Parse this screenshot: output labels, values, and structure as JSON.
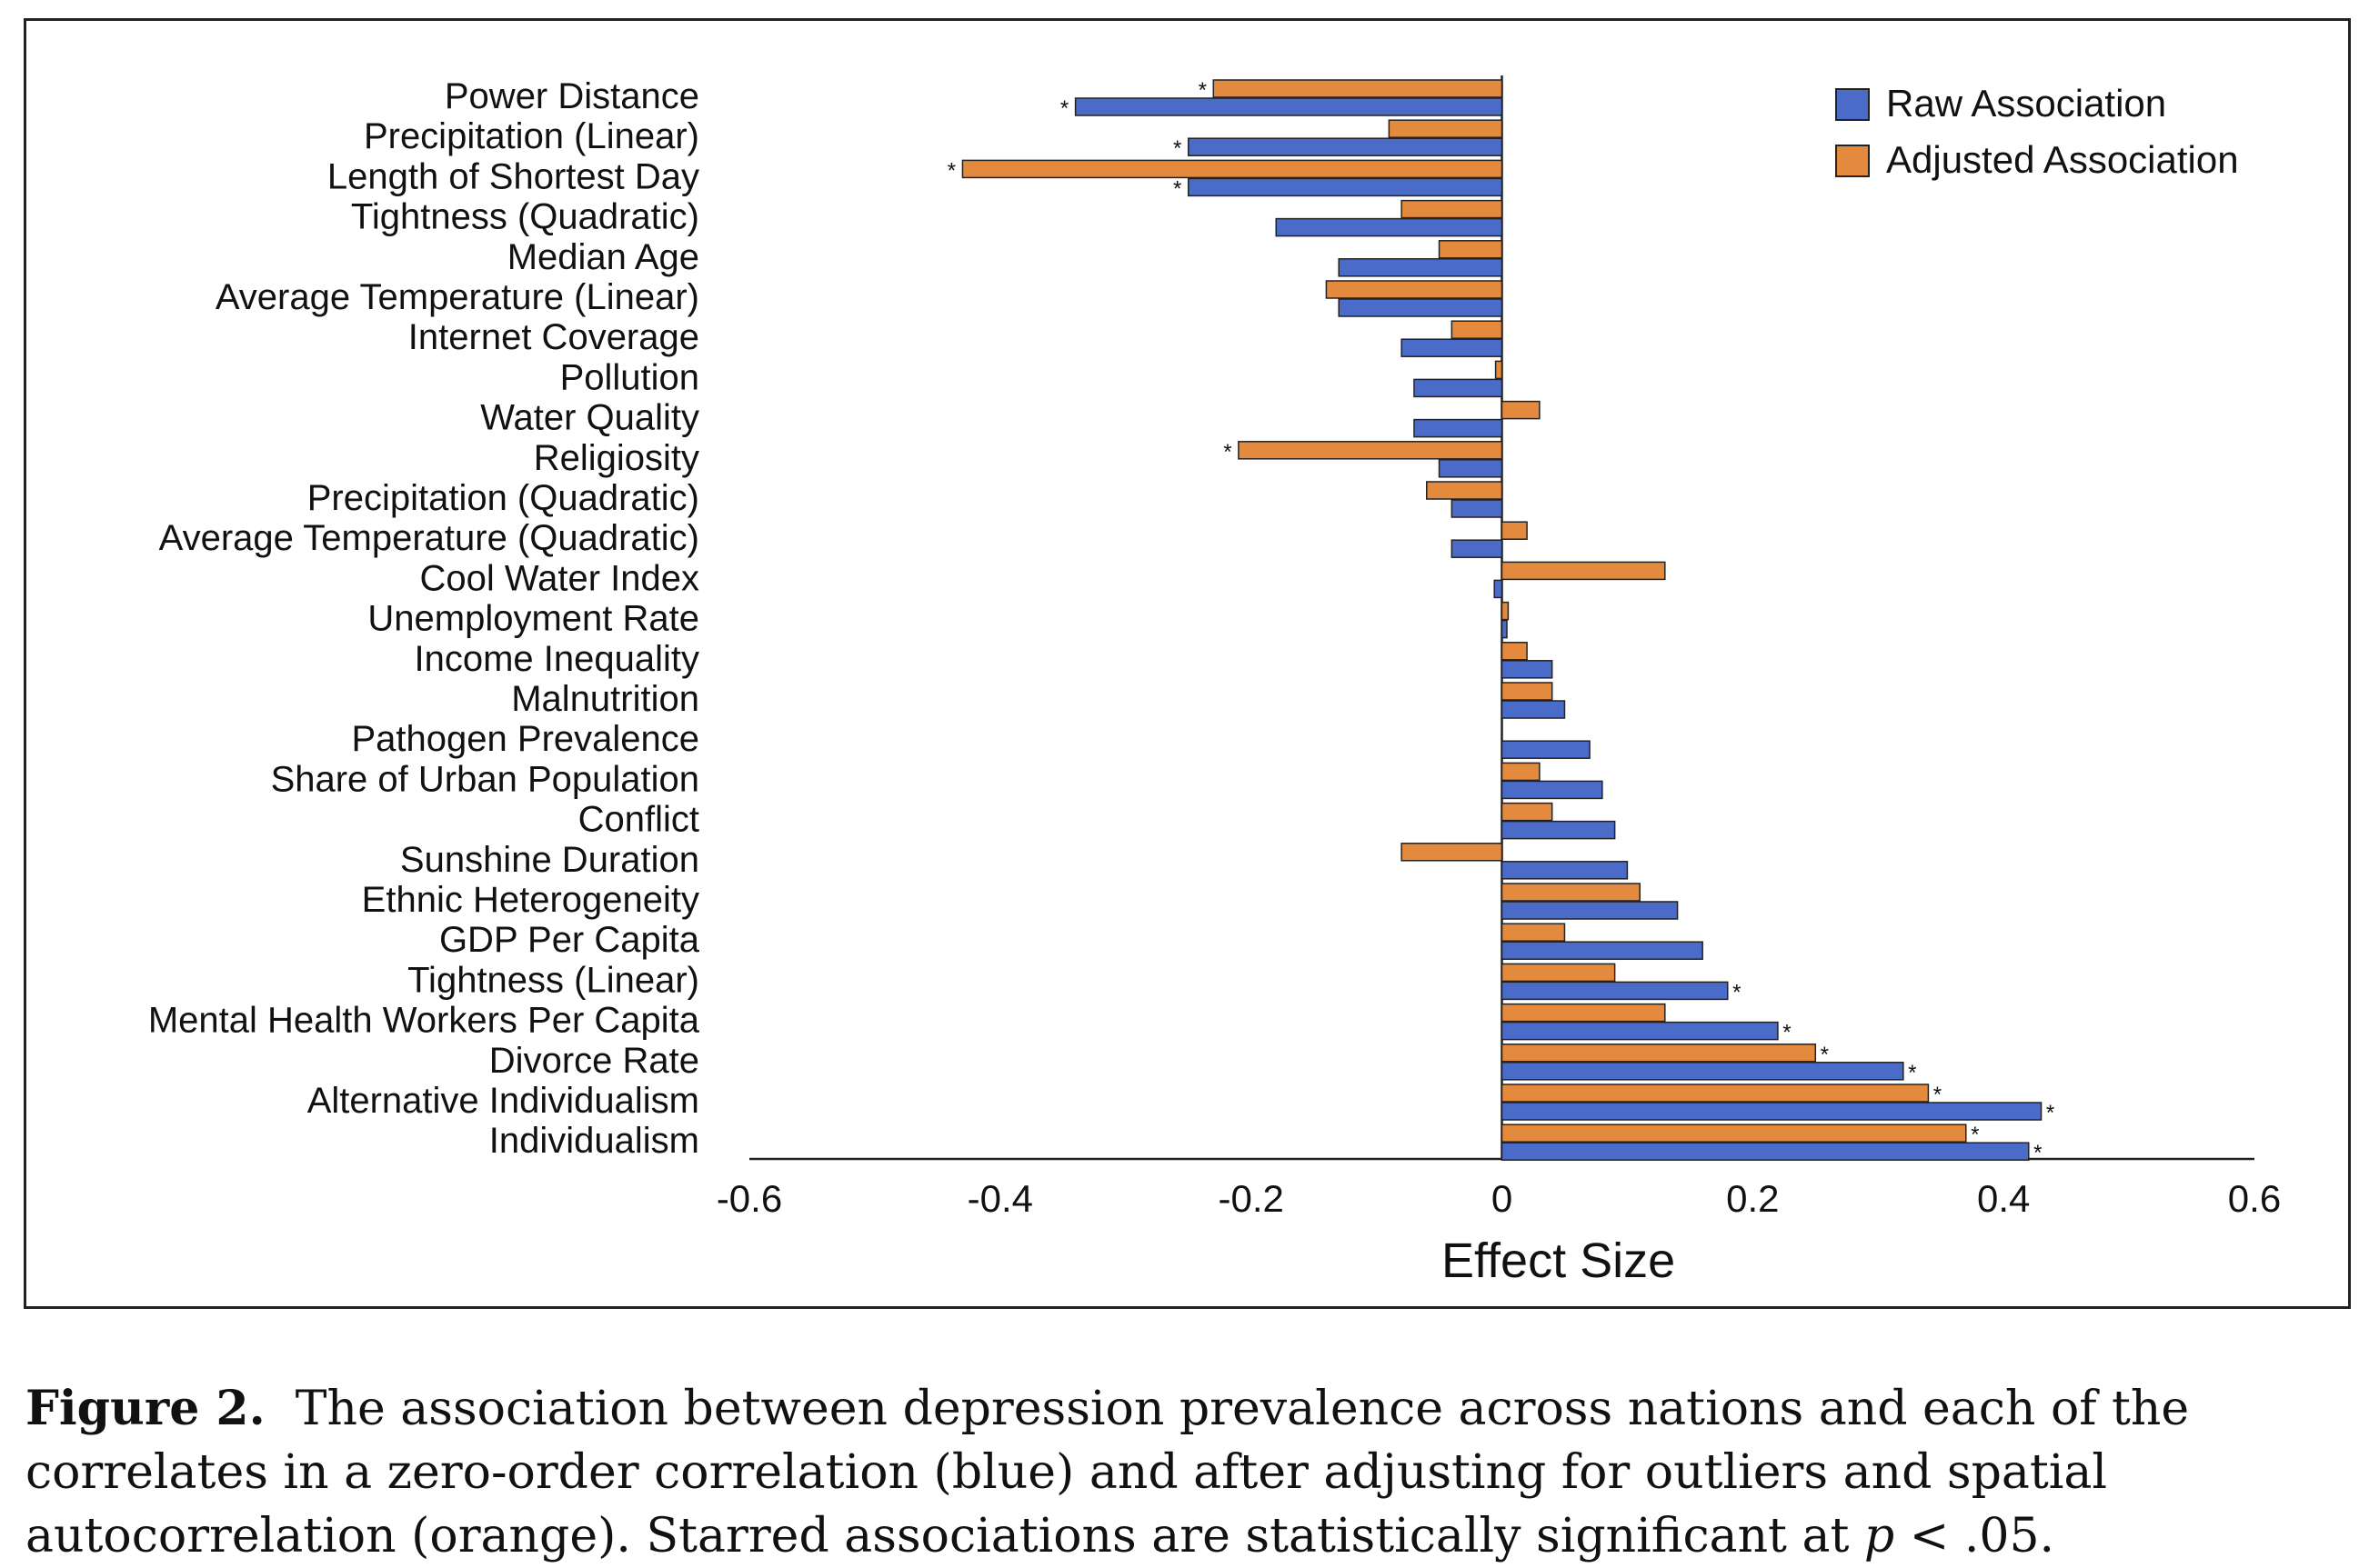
{
  "chart_data": {
    "type": "bar",
    "orientation": "horizontal",
    "xlabel": "Effect Size",
    "xlim": [
      -0.6,
      0.6
    ],
    "xticks": [
      "-0.6",
      "-0.4",
      "-0.2",
      "0",
      "0.2",
      "0.4",
      "0.6"
    ],
    "legend_position": "top-right",
    "categories": [
      "Power Distance",
      "Precipitation (Linear)",
      "Length of Shortest Day",
      "Tightness (Quadratic)",
      "Median Age",
      "Average Temperature (Linear)",
      "Internet Coverage",
      "Pollution",
      "Water Quality",
      "Religiosity",
      "Precipitation (Quadratic)",
      "Average Temperature (Quadratic)",
      "Cool Water Index",
      "Unemployment Rate",
      "Income Inequality",
      "Malnutrition",
      "Pathogen Prevalence",
      "Share of Urban Population",
      "Conflict",
      "Sunshine Duration",
      "Ethnic Heterogeneity",
      "GDP Per Capita",
      "Tightness (Linear)",
      "Mental Health Workers Per Capita",
      "Divorce Rate",
      "Alternative Individualism",
      "Individualism"
    ],
    "series": [
      {
        "name": "Raw Association",
        "color": "#4a6cc8",
        "values": [
          -0.34,
          -0.25,
          -0.25,
          -0.18,
          -0.13,
          -0.13,
          -0.08,
          -0.07,
          -0.07,
          -0.05,
          -0.04,
          -0.04,
          -0.006,
          0.004,
          0.04,
          0.05,
          0.07,
          0.08,
          0.09,
          0.1,
          0.14,
          0.16,
          0.18,
          0.22,
          0.32,
          0.43,
          0.42
        ],
        "significant": [
          true,
          true,
          true,
          false,
          false,
          false,
          false,
          false,
          false,
          false,
          false,
          false,
          false,
          false,
          false,
          false,
          false,
          false,
          false,
          false,
          false,
          false,
          true,
          true,
          true,
          true,
          true
        ]
      },
      {
        "name": "Adjusted Association",
        "color": "#e48a3f",
        "values": [
          -0.23,
          -0.09,
          -0.43,
          -0.08,
          -0.05,
          -0.14,
          -0.04,
          -0.005,
          0.03,
          -0.21,
          -0.06,
          0.02,
          0.13,
          0.005,
          0.02,
          0.04,
          0.0,
          0.03,
          0.04,
          -0.08,
          0.11,
          0.05,
          0.09,
          0.13,
          0.25,
          0.34,
          0.37
        ],
        "significant": [
          true,
          false,
          true,
          false,
          false,
          false,
          false,
          false,
          false,
          true,
          false,
          false,
          false,
          false,
          false,
          false,
          false,
          false,
          false,
          false,
          false,
          false,
          false,
          false,
          true,
          true,
          true
        ]
      }
    ],
    "significance_marker": "*"
  },
  "caption": {
    "label": "Figure 2.",
    "text_1": "The association between depression prevalence across nations and each of the correlates in a zero-order correlation (blue) and after adjusting for outliers and spatial autocorrelation (orange). Starred associations are statistically significant at ",
    "p_symbol": "p",
    "text_2": " < .05."
  }
}
